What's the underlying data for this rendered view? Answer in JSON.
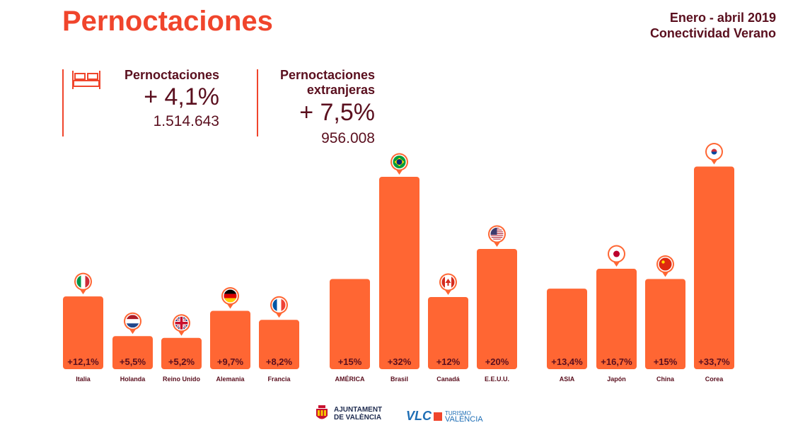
{
  "header": {
    "title": "Pernoctaciones",
    "period_line1": "Enero - abril 2019",
    "period_line2": "Conectividad Verano"
  },
  "kpis": [
    {
      "label": "Pernoctaciones",
      "pct": "+ 4,1%",
      "value": "1.514.643",
      "icon": "bed-icon"
    },
    {
      "label_line1": "Pernoctaciones",
      "label_line2": "extranjeras",
      "pct": "+ 7,5%",
      "value": "956.008"
    }
  ],
  "colors": {
    "accent": "#f0452c",
    "bar": "#ff6633",
    "text_dark": "#5a0f1e"
  },
  "chart_data": {
    "type": "bar",
    "categories": [
      "Italia",
      "Holanda",
      "Reino Unido",
      "Alemania",
      "Francia",
      "AMÉRICA",
      "Brasil",
      "Canadá",
      "E.E.U.U.",
      "ASIA",
      "Japón",
      "China",
      "Corea"
    ],
    "groups": [
      [
        "Italia",
        "Holanda",
        "Reino Unido",
        "Alemania",
        "Francia"
      ],
      [
        "AMÉRICA",
        "Brasil",
        "Canadá",
        "E.E.U.U."
      ],
      [
        "ASIA",
        "Japón",
        "China",
        "Corea"
      ]
    ],
    "values": [
      12.1,
      5.5,
      5.2,
      9.7,
      8.2,
      15,
      32,
      12,
      20,
      13.4,
      16.7,
      15,
      33.7
    ],
    "labels": [
      "+12,1%",
      "+5,5%",
      "+5,2%",
      "+9,7%",
      "+8,2%",
      "+15%",
      "+32%",
      "+12%",
      "+20%",
      "+13,4%",
      "+16,7%",
      "+15%",
      "+33,7%"
    ],
    "flags": [
      "italy-flag",
      "netherlands-flag",
      "uk-flag",
      "germany-flag",
      "france-flag",
      null,
      "brazil-flag",
      "canada-flag",
      "usa-flag",
      null,
      "japan-flag",
      "china-flag",
      "korea-flag"
    ],
    "title": "",
    "xlabel": "",
    "ylabel": "",
    "grid": false,
    "legend": "none"
  },
  "footer": {
    "ajuntament_line1": "AJUNTAMENT",
    "ajuntament_line2": "DE VALÈNCIA",
    "vlc": "VLC",
    "vlc_sub1": "TURISMO",
    "vlc_sub2": "VALÈNCIA"
  }
}
